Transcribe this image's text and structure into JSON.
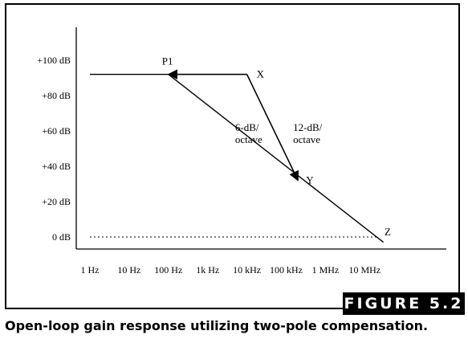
{
  "figure_label": "FIGURE 5.2",
  "caption": "Open-loop gain response utilizing two-pole compensation.",
  "chart_data": {
    "type": "line",
    "title": "",
    "xlabel": "",
    "ylabel": "",
    "x_scale": "log",
    "x_ticks": [
      {
        "value": 1,
        "label": "1 Hz"
      },
      {
        "value": 10,
        "label": "10 Hz"
      },
      {
        "value": 100,
        "label": "100 Hz"
      },
      {
        "value": 1000,
        "label": "1k Hz"
      },
      {
        "value": 10000,
        "label": "10 kHz"
      },
      {
        "value": 100000,
        "label": "100 kHz"
      },
      {
        "value": 1000000,
        "label": "1 MHz"
      },
      {
        "value": 10000000,
        "label": "10 MHz"
      }
    ],
    "y_ticks": [
      {
        "value": 100,
        "label": "+100 dB"
      },
      {
        "value": 80,
        "label": "+80 dB"
      },
      {
        "value": 60,
        "label": "+60 dB"
      },
      {
        "value": 40,
        "label": "+40 dB"
      },
      {
        "value": 20,
        "label": "+20 dB"
      },
      {
        "value": 0,
        "label": "0 dB"
      }
    ],
    "xlim": [
      0.5,
      40000000
    ],
    "ylim": [
      -5,
      110
    ],
    "grid": false,
    "series": [
      {
        "key": "flat",
        "style": "solid",
        "points": [
          [
            1,
            92
          ],
          [
            10000,
            92
          ]
        ]
      },
      {
        "key": "single_pole",
        "style": "solid",
        "points": [
          [
            100,
            92
          ],
          [
            30000000,
            -3
          ]
        ]
      },
      {
        "key": "two_pole",
        "style": "solid",
        "points": [
          [
            10000,
            92
          ],
          [
            200000,
            32
          ]
        ]
      },
      {
        "key": "unity",
        "style": "dotted",
        "points": [
          [
            1,
            0
          ],
          [
            20000000,
            0
          ]
        ]
      }
    ],
    "arrows": [
      {
        "from": [
          10000,
          92
        ],
        "to": [
          100,
          92
        ]
      },
      {
        "from": [
          10000,
          92
        ],
        "to": [
          200000,
          32
        ]
      }
    ],
    "point_labels": [
      {
        "text": "P1",
        "x": 100,
        "y": 92
      },
      {
        "text": "X",
        "x": 10000,
        "y": 92
      },
      {
        "text": "Y",
        "x": 200000,
        "y": 32
      },
      {
        "text": "Z",
        "x": 20000000,
        "y": 0
      }
    ],
    "annotations": [
      {
        "lines": [
          "6-dB/",
          "octave"
        ],
        "x": 5000,
        "y": 60
      },
      {
        "lines": [
          "12-dB/",
          "octave"
        ],
        "x": 150000,
        "y": 60
      }
    ]
  }
}
